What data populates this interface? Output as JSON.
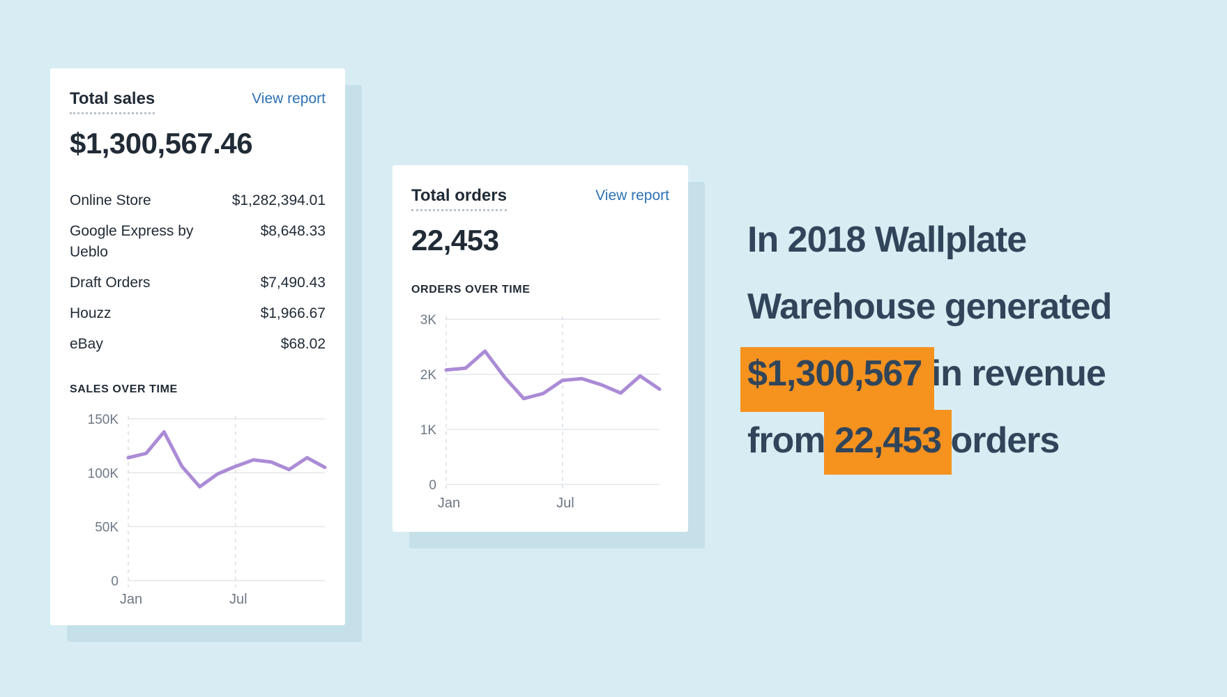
{
  "background_color": "#d7edf3",
  "shadow_color": "#c6e0e9",
  "sales_card": {
    "title": "Total sales",
    "link": "View report",
    "value": "$1,300,567.46",
    "rows": [
      {
        "label": "Online Store",
        "value": "$1,282,394.01"
      },
      {
        "label": "Google Express by Ueblo",
        "value": "$8,648.33"
      },
      {
        "label": "Draft Orders",
        "value": "$7,490.43"
      },
      {
        "label": "Houzz",
        "value": "$1,966.67"
      },
      {
        "label": "eBay",
        "value": "$68.02"
      }
    ],
    "section_header": "SALES OVER TIME"
  },
  "orders_card": {
    "title": "Total orders",
    "link": "View report",
    "value": "22,453",
    "section_header": "ORDERS OVER TIME"
  },
  "headline": {
    "line1": "In 2018 Wallplate",
    "line2": "Warehouse generated",
    "line3_highlight": "$1,300,567",
    "line3_rest": " in revenue",
    "line4_pre": "from ",
    "line4_highlight": "22,453",
    "line4_post": " orders",
    "highlight_color": "#f6921e",
    "text_color": "#31455a"
  },
  "chart_style": {
    "grid_color": "#e4e7eb",
    "dashed_color": "#d9dde2",
    "axis_text_color": "#6d7884",
    "line_color": "#ab8bd6"
  },
  "chart_data": [
    {
      "id": "sales",
      "type": "line",
      "title": "SALES OVER TIME",
      "x": [
        "Jan",
        "Feb",
        "Mar",
        "Apr",
        "May",
        "Jun",
        "Jul",
        "Aug",
        "Sep",
        "Oct",
        "Nov",
        "Dec"
      ],
      "values": [
        114000,
        118000,
        138000,
        106000,
        87000,
        99000,
        106000,
        112000,
        110000,
        103000,
        114000,
        105000
      ],
      "ylim": [
        0,
        150000
      ],
      "yticks": [
        0,
        50000,
        100000,
        150000
      ],
      "ytick_labels": [
        "0",
        "50K",
        "100K",
        "150K"
      ],
      "xticks": [
        {
          "index": 0,
          "label": "Jan"
        },
        {
          "index": 6,
          "label": "Jul"
        }
      ],
      "grid": true,
      "legend": "none",
      "line_color": "#ab8bd6"
    },
    {
      "id": "orders",
      "type": "line",
      "title": "ORDERS OVER TIME",
      "x": [
        "Jan",
        "Feb",
        "Mar",
        "Apr",
        "May",
        "Jun",
        "Jul",
        "Aug",
        "Sep",
        "Oct",
        "Nov",
        "Dec"
      ],
      "values": [
        2080,
        2110,
        2420,
        1950,
        1560,
        1650,
        1890,
        1920,
        1810,
        1660,
        1970,
        1730
      ],
      "ylim": [
        0,
        3000
      ],
      "yticks": [
        0,
        1000,
        2000,
        3000
      ],
      "ytick_labels": [
        "0",
        "1K",
        "2K",
        "3K"
      ],
      "xticks": [
        {
          "index": 0,
          "label": "Jan"
        },
        {
          "index": 6,
          "label": "Jul"
        }
      ],
      "grid": true,
      "legend": "none",
      "line_color": "#ab8bd6"
    }
  ]
}
